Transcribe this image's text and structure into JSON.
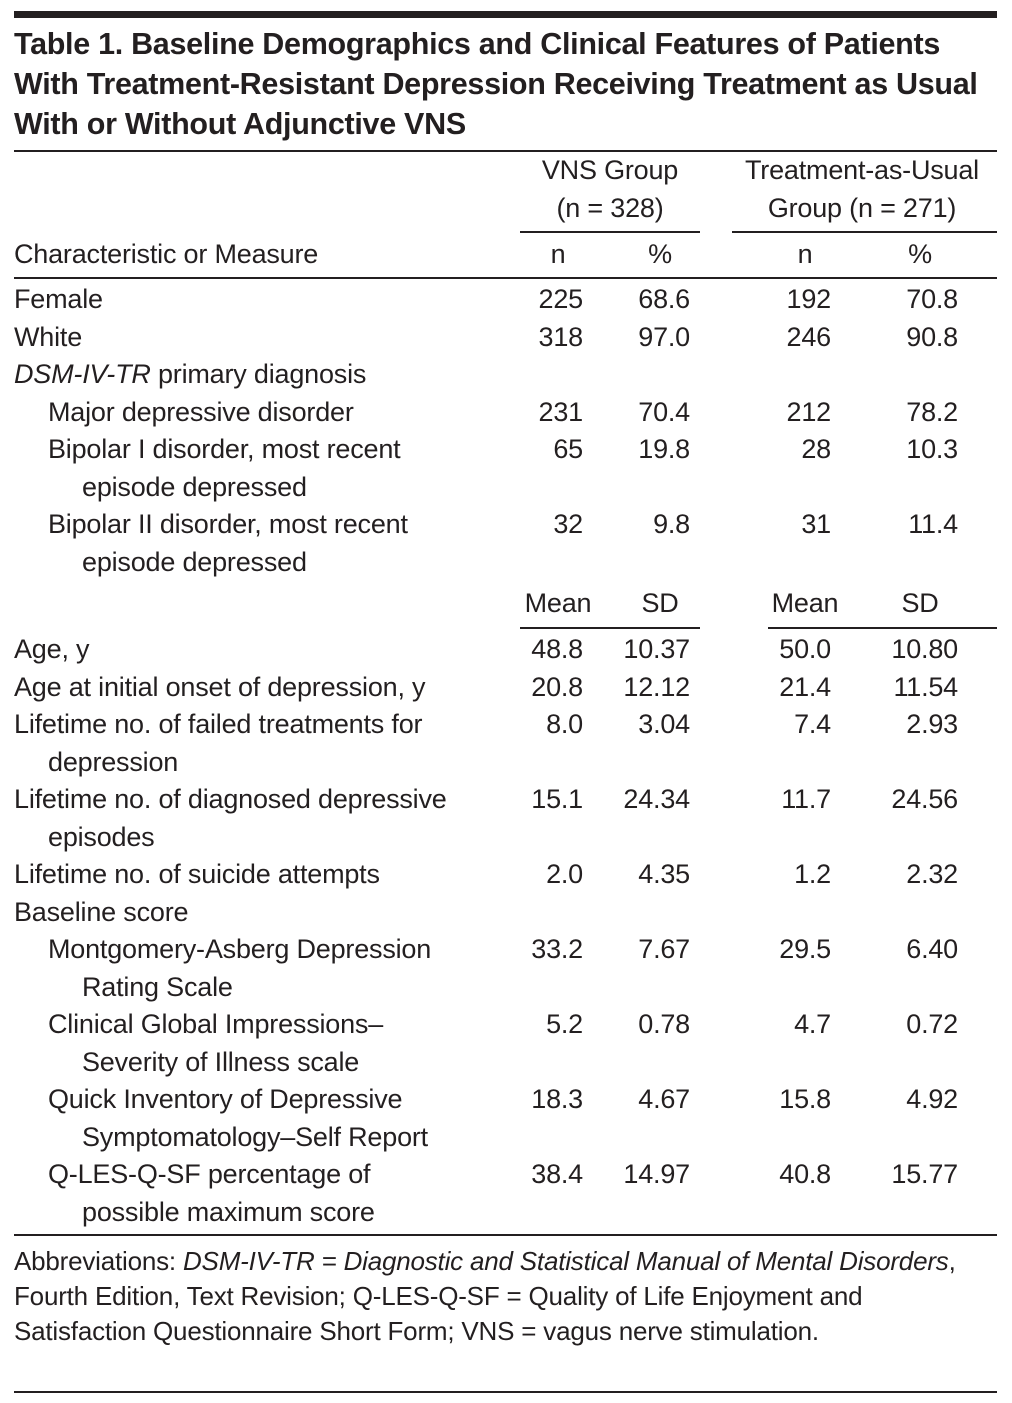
{
  "title": "Table 1. Baseline Demographics and Clinical Features of Patients With Treatment-Resistant Depression Receiving Treatment as Usual With or Without Adjunctive VNS",
  "header": {
    "group1_line1": "VNS Group",
    "group1_line2": "(n = 328)",
    "group2_line1": "Treatment-as-Usual",
    "group2_line2": "Group (n = 271)",
    "row_label": "Characteristic or Measure",
    "n": "n",
    "pct": "%",
    "mean": "Mean",
    "sd": "SD"
  },
  "categorical_rows": [
    {
      "lines": [
        "Female"
      ],
      "indent": 0,
      "v": [
        "225",
        "68.6",
        "192",
        "70.8"
      ]
    },
    {
      "lines": [
        "White"
      ],
      "indent": 0,
      "v": [
        "318",
        "97.0",
        "246",
        "90.8"
      ]
    },
    {
      "italic": "DSM-IV-TR",
      "lines": [
        " primary diagnosis"
      ],
      "indent": 0,
      "v": []
    },
    {
      "lines": [
        "Major depressive disorder"
      ],
      "indent": 1,
      "v": [
        "231",
        "70.4",
        "212",
        "78.2"
      ]
    },
    {
      "lines": [
        "Bipolar I disorder, most recent",
        "episode depressed"
      ],
      "indent": 1,
      "v": [
        "65",
        "19.8",
        "28",
        "10.3"
      ]
    },
    {
      "lines": [
        "Bipolar II disorder, most recent",
        "episode depressed"
      ],
      "indent": 1,
      "v": [
        "32",
        "9.8",
        "31",
        "11.4"
      ]
    }
  ],
  "continuous_rows": [
    {
      "lines": [
        "Age, y"
      ],
      "indent": 0,
      "v": [
        "48.8",
        "10.37",
        "50.0",
        "10.80"
      ]
    },
    {
      "lines": [
        "Age at initial onset of depression, y"
      ],
      "indent": 0,
      "v": [
        "20.8",
        "12.12",
        "21.4",
        "11.54"
      ]
    },
    {
      "lines": [
        "Lifetime no. of failed treatments for",
        "depression"
      ],
      "indent": 0,
      "v": [
        "8.0",
        "3.04",
        "7.4",
        "2.93"
      ]
    },
    {
      "lines": [
        "Lifetime no. of diagnosed depressive",
        "episodes"
      ],
      "indent": 0,
      "v": [
        "15.1",
        "24.34",
        "11.7",
        "24.56"
      ]
    },
    {
      "lines": [
        "Lifetime no. of suicide attempts"
      ],
      "indent": 0,
      "v": [
        "2.0",
        "4.35",
        "1.2",
        "2.32"
      ]
    },
    {
      "lines": [
        "Baseline score"
      ],
      "indent": 0,
      "v": []
    },
    {
      "lines": [
        "Montgomery-Asberg Depression",
        "Rating Scale"
      ],
      "indent": 1,
      "v": [
        "33.2",
        "7.67",
        "29.5",
        "6.40"
      ]
    },
    {
      "lines": [
        "Clinical Global Impressions–",
        "Severity of Illness scale"
      ],
      "indent": 1,
      "v": [
        "5.2",
        "0.78",
        "4.7",
        "0.72"
      ]
    },
    {
      "lines": [
        "Quick Inventory of Depressive",
        "Symptomatology–Self Report"
      ],
      "indent": 1,
      "v": [
        "18.3",
        "4.67",
        "15.8",
        "4.92"
      ]
    },
    {
      "lines": [
        "Q-LES-Q-SF percentage of",
        "possible maximum score"
      ],
      "indent": 1,
      "v": [
        "38.4",
        "14.97",
        "40.8",
        "15.77"
      ]
    }
  ],
  "footnote": [
    {
      "text": "Abbreviations: ",
      "italic": false
    },
    {
      "text": "DSM-IV-TR = Diagnostic and Statistical Manual of Mental Disorders",
      "italic": true
    },
    {
      "text": ", Fourth Edition, Text Revision; Q-LES-Q-SF = Quality of Life Enjoyment and Satisfaction Questionnaire Short Form; VNS = vagus nerve stimulation.",
      "italic": false
    }
  ]
}
